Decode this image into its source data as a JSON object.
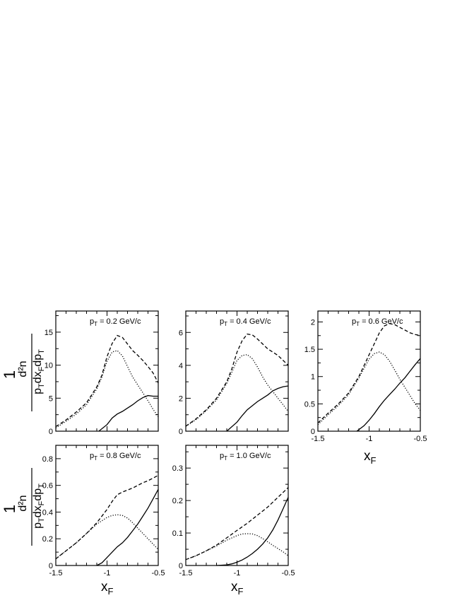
{
  "labels": {
    "ylabel_num": "d²n",
    "ylabel_den_main": "p",
    "ylabel_den_sub": "T",
    "ylabel_den_mid": "dx",
    "ylabel_den_sub2": "F",
    "ylabel_den_end": "dp",
    "ylabel_den_sub3": "T",
    "ylabel_one": "1",
    "xlabel_main": "x",
    "xlabel_sub": "F"
  },
  "chart_data": [
    {
      "type": "line",
      "annotation": {
        "p": "p",
        "sub": "T",
        "text": " = 0.2 GeV/c"
      },
      "xlim": [
        -1.5,
        -0.5
      ],
      "ylim": [
        0,
        18.2
      ],
      "yticks": [
        0,
        5,
        10,
        15
      ],
      "ytick_labels": [
        "0",
        "5",
        "10",
        "15"
      ],
      "xticks": [],
      "xtick_labels": [],
      "series": [
        {
          "style": "dashed",
          "x": [
            -1.5,
            -1.4,
            -1.3,
            -1.2,
            -1.1,
            -1.05,
            -1.0,
            -0.95,
            -0.9,
            -0.85,
            -0.8,
            -0.75,
            -0.7,
            -0.65,
            -0.6,
            -0.55,
            -0.5
          ],
          "y": [
            0.7,
            1.7,
            2.9,
            4.3,
            6.7,
            8.5,
            11.3,
            13.3,
            14.5,
            14.2,
            13.2,
            12.2,
            11.5,
            10.7,
            9.8,
            8.8,
            7.3
          ]
        },
        {
          "style": "dotted",
          "x": [
            -1.5,
            -1.4,
            -1.3,
            -1.2,
            -1.1,
            -1.05,
            -1.0,
            -0.95,
            -0.9,
            -0.85,
            -0.8,
            -0.75,
            -0.7,
            -0.65,
            -0.6,
            -0.55,
            -0.5
          ],
          "y": [
            0.5,
            1.5,
            2.6,
            4.0,
            6.4,
            8.2,
            10.6,
            12.0,
            12.2,
            11.4,
            9.8,
            8.2,
            7.0,
            5.8,
            4.6,
            3.3,
            2.2
          ]
        },
        {
          "style": "solid",
          "x": [
            -1.08,
            -1.0,
            -0.95,
            -0.9,
            -0.85,
            -0.8,
            -0.75,
            -0.7,
            -0.65,
            -0.6,
            -0.55,
            -0.5
          ],
          "y": [
            0.0,
            1.0,
            2.0,
            2.6,
            3.0,
            3.5,
            4.0,
            4.6,
            5.1,
            5.4,
            5.3,
            5.3
          ]
        }
      ]
    },
    {
      "type": "line",
      "annotation": {
        "p": "p",
        "sub": "T",
        "text": " = 0.4 GeV/c"
      },
      "xlim": [
        -1.5,
        -0.5
      ],
      "ylim": [
        0,
        7.3
      ],
      "yticks": [
        0,
        2,
        4,
        6
      ],
      "ytick_labels": [
        "0",
        "2",
        "4",
        "6"
      ],
      "xticks": [],
      "xtick_labels": [],
      "series": [
        {
          "style": "dashed",
          "x": [
            -1.5,
            -1.4,
            -1.3,
            -1.2,
            -1.1,
            -1.05,
            -1.0,
            -0.95,
            -0.9,
            -0.85,
            -0.8,
            -0.75,
            -0.7,
            -0.65,
            -0.6,
            -0.55,
            -0.5
          ],
          "y": [
            0.3,
            0.75,
            1.3,
            2.0,
            3.0,
            3.8,
            4.8,
            5.5,
            5.9,
            5.85,
            5.6,
            5.3,
            5.0,
            4.8,
            4.6,
            4.3,
            4.0
          ]
        },
        {
          "style": "dotted",
          "x": [
            -1.5,
            -1.4,
            -1.3,
            -1.2,
            -1.1,
            -1.05,
            -1.0,
            -0.95,
            -0.9,
            -0.85,
            -0.8,
            -0.75,
            -0.7,
            -0.65,
            -0.6,
            -0.55,
            -0.5
          ],
          "y": [
            0.3,
            0.7,
            1.25,
            1.9,
            2.9,
            3.6,
            4.3,
            4.6,
            4.65,
            4.4,
            3.9,
            3.3,
            2.8,
            2.4,
            2.0,
            1.6,
            1.2
          ]
        },
        {
          "style": "solid",
          "x": [
            -1.1,
            -1.0,
            -0.95,
            -0.9,
            -0.85,
            -0.8,
            -0.75,
            -0.7,
            -0.65,
            -0.6,
            -0.55,
            -0.5
          ],
          "y": [
            0.0,
            0.55,
            0.95,
            1.3,
            1.55,
            1.8,
            2.0,
            2.2,
            2.45,
            2.6,
            2.7,
            2.75
          ]
        }
      ]
    },
    {
      "type": "line",
      "annotation": {
        "p": "p",
        "sub": "T",
        "text": " = 0.6 GeV/c"
      },
      "xlim": [
        -1.5,
        -0.5
      ],
      "ylim": [
        0,
        2.2
      ],
      "yticks": [
        0,
        0.5,
        1,
        1.5,
        2
      ],
      "ytick_labels": [
        "0",
        "0.5",
        "1",
        "1.5",
        "2"
      ],
      "xticks": [
        -1.5,
        -1,
        -0.5
      ],
      "xtick_labels": [
        "-1.5",
        "-1",
        "-0.5"
      ],
      "series": [
        {
          "style": "dashed",
          "x": [
            -1.5,
            -1.4,
            -1.3,
            -1.2,
            -1.1,
            -1.05,
            -1.0,
            -0.95,
            -0.9,
            -0.85,
            -0.8,
            -0.75,
            -0.7,
            -0.65,
            -0.6,
            -0.55,
            -0.5
          ],
          "y": [
            0.15,
            0.33,
            0.5,
            0.7,
            1.0,
            1.2,
            1.4,
            1.6,
            1.8,
            1.93,
            1.97,
            1.95,
            1.9,
            1.85,
            1.8,
            1.77,
            1.75
          ]
        },
        {
          "style": "dotted",
          "x": [
            -1.5,
            -1.4,
            -1.3,
            -1.2,
            -1.1,
            -1.05,
            -1.0,
            -0.95,
            -0.9,
            -0.85,
            -0.8,
            -0.75,
            -0.7,
            -0.65,
            -0.6,
            -0.55,
            -0.5
          ],
          "y": [
            0.12,
            0.3,
            0.47,
            0.67,
            0.97,
            1.15,
            1.32,
            1.42,
            1.45,
            1.4,
            1.28,
            1.12,
            0.95,
            0.8,
            0.65,
            0.5,
            0.38
          ]
        },
        {
          "style": "solid",
          "x": [
            -1.12,
            -1.05,
            -1.0,
            -0.95,
            -0.9,
            -0.85,
            -0.8,
            -0.75,
            -0.7,
            -0.65,
            -0.6,
            -0.55,
            -0.5
          ],
          "y": [
            0.0,
            0.1,
            0.2,
            0.32,
            0.45,
            0.57,
            0.67,
            0.77,
            0.88,
            0.98,
            1.1,
            1.22,
            1.33
          ]
        }
      ]
    },
    {
      "type": "line",
      "annotation": {
        "p": "p",
        "sub": "T",
        "text": " = 0.8 GeV/c"
      },
      "xlim": [
        -1.5,
        -0.5
      ],
      "ylim": [
        0,
        0.9
      ],
      "yticks": [
        0,
        0.2,
        0.4,
        0.6,
        0.8
      ],
      "ytick_labels": [
        "0",
        "0.2",
        "0.4",
        "0.6",
        "0.8"
      ],
      "xticks": [
        -1.5,
        -1,
        -0.5
      ],
      "xtick_labels": [
        "-1.5",
        "-1",
        "-0.5"
      ],
      "series": [
        {
          "style": "dashed",
          "x": [
            -1.5,
            -1.4,
            -1.3,
            -1.2,
            -1.1,
            -1.0,
            -0.95,
            -0.9,
            -0.85,
            -0.8,
            -0.75,
            -0.7,
            -0.65,
            -0.6,
            -0.55,
            -0.5
          ],
          "y": [
            0.05,
            0.11,
            0.17,
            0.24,
            0.32,
            0.42,
            0.48,
            0.53,
            0.55,
            0.565,
            0.58,
            0.6,
            0.62,
            0.635,
            0.655,
            0.675
          ]
        },
        {
          "style": "dotted",
          "x": [
            -1.5,
            -1.4,
            -1.3,
            -1.2,
            -1.1,
            -1.0,
            -0.95,
            -0.9,
            -0.85,
            -0.8,
            -0.75,
            -0.7,
            -0.65,
            -0.6,
            -0.55,
            -0.5
          ],
          "y": [
            0.05,
            0.11,
            0.17,
            0.24,
            0.31,
            0.36,
            0.375,
            0.38,
            0.375,
            0.355,
            0.32,
            0.28,
            0.24,
            0.2,
            0.16,
            0.12
          ]
        },
        {
          "style": "solid",
          "x": [
            -1.1,
            -1.05,
            -1.0,
            -0.95,
            -0.9,
            -0.85,
            -0.8,
            -0.75,
            -0.7,
            -0.65,
            -0.6,
            -0.55,
            -0.5
          ],
          "y": [
            0.0,
            0.02,
            0.06,
            0.1,
            0.14,
            0.17,
            0.21,
            0.26,
            0.31,
            0.37,
            0.43,
            0.5,
            0.57
          ]
        }
      ]
    },
    {
      "type": "line",
      "annotation": {
        "p": "p",
        "sub": "T",
        "text": " = 1.0 GeV/c"
      },
      "xlim": [
        -1.5,
        -0.5
      ],
      "ylim": [
        0,
        0.37
      ],
      "yticks": [
        0,
        0.1,
        0.2,
        0.3
      ],
      "ytick_labels": [
        "0",
        "0.1",
        "0.2",
        "0.3"
      ],
      "xticks": [
        -1.5,
        -1,
        -0.5
      ],
      "xtick_labels": [
        "-1.5",
        "-1",
        "-0.5"
      ],
      "series": [
        {
          "style": "dashed",
          "x": [
            -1.5,
            -1.4,
            -1.3,
            -1.2,
            -1.1,
            -1.0,
            -0.9,
            -0.8,
            -0.7,
            -0.6,
            -0.5
          ],
          "y": [
            0.018,
            0.03,
            0.045,
            0.063,
            0.085,
            0.108,
            0.13,
            0.155,
            0.18,
            0.21,
            0.24
          ]
        },
        {
          "style": "dotted",
          "x": [
            -1.5,
            -1.4,
            -1.3,
            -1.2,
            -1.1,
            -1.0,
            -0.95,
            -0.9,
            -0.85,
            -0.8,
            -0.75,
            -0.7,
            -0.65,
            -0.6,
            -0.55,
            -0.5
          ],
          "y": [
            0.018,
            0.03,
            0.045,
            0.06,
            0.078,
            0.092,
            0.097,
            0.098,
            0.097,
            0.092,
            0.083,
            0.073,
            0.062,
            0.052,
            0.042,
            0.03
          ]
        },
        {
          "style": "solid",
          "x": [
            -1.2,
            -1.1,
            -1.05,
            -1.0,
            -0.95,
            -0.9,
            -0.85,
            -0.8,
            -0.75,
            -0.7,
            -0.65,
            -0.6,
            -0.55,
            -0.5
          ],
          "y": [
            0.0,
            0.002,
            0.005,
            0.01,
            0.017,
            0.026,
            0.037,
            0.05,
            0.066,
            0.085,
            0.11,
            0.14,
            0.175,
            0.21
          ]
        }
      ]
    }
  ]
}
